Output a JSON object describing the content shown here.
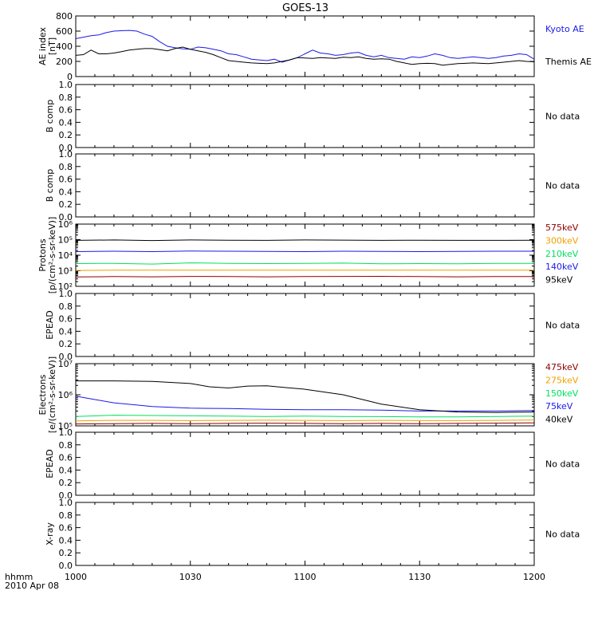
{
  "title": "GOES-13",
  "footer": {
    "time_label": "hhmm",
    "date_label": "2010 Apr 08"
  },
  "colors": {
    "black": "#000000",
    "blue": "#1a1ae6",
    "green": "#00e060",
    "orange": "#f0a000",
    "darkred": "#8b0000"
  },
  "chart_data": [
    {
      "type": "line",
      "ylabel": "AE index",
      "ylabel_unit": "[nT]",
      "ylim": [
        0,
        800
      ],
      "yticks": [
        0,
        200,
        400,
        600,
        800
      ],
      "series": [
        {
          "name": "Kyoto AE",
          "color": "#1a1ae6",
          "x": [
            0,
            2,
            4,
            6,
            8,
            10,
            12,
            14,
            16,
            18,
            20,
            22,
            24,
            26,
            28,
            30,
            32,
            34,
            36,
            38,
            40,
            42,
            44,
            46,
            48,
            50,
            52,
            54,
            56,
            58,
            60,
            62,
            64,
            66,
            68,
            70,
            72,
            74,
            76,
            78,
            80,
            82,
            84,
            86,
            88,
            90,
            92,
            94,
            96,
            98,
            100,
            102,
            104,
            106,
            108,
            110,
            112,
            114,
            116,
            118,
            120
          ],
          "values": [
            500,
            520,
            540,
            550,
            580,
            600,
            605,
            610,
            600,
            560,
            530,
            460,
            400,
            380,
            365,
            360,
            390,
            380,
            360,
            340,
            300,
            290,
            260,
            230,
            220,
            210,
            230,
            190,
            220,
            250,
            300,
            350,
            310,
            300,
            280,
            290,
            310,
            320,
            280,
            260,
            280,
            250,
            240,
            230,
            260,
            250,
            270,
            300,
            280,
            250,
            240,
            250,
            260,
            250,
            240,
            250,
            270,
            280,
            300,
            290,
            230
          ]
        },
        {
          "name": "Themis AE",
          "color": "#000000",
          "x": [
            0,
            2,
            4,
            6,
            8,
            10,
            12,
            14,
            16,
            18,
            20,
            22,
            24,
            26,
            28,
            30,
            32,
            34,
            36,
            38,
            40,
            42,
            44,
            46,
            48,
            50,
            52,
            54,
            56,
            58,
            60,
            62,
            64,
            66,
            68,
            70,
            72,
            74,
            76,
            78,
            80,
            82,
            84,
            86,
            88,
            90,
            92,
            94,
            96,
            98,
            100,
            102,
            104,
            106,
            108,
            110,
            112,
            114,
            116,
            118,
            120
          ],
          "values": [
            280,
            290,
            350,
            300,
            300,
            310,
            330,
            350,
            360,
            370,
            370,
            355,
            340,
            370,
            390,
            360,
            340,
            320,
            290,
            250,
            210,
            200,
            190,
            180,
            175,
            170,
            180,
            200,
            220,
            250,
            245,
            240,
            250,
            245,
            240,
            255,
            250,
            260,
            240,
            230,
            235,
            230,
            200,
            180,
            160,
            170,
            175,
            170,
            150,
            160,
            170,
            175,
            180,
            175,
            170,
            180,
            190,
            200,
            210,
            200,
            195
          ]
        }
      ]
    },
    {
      "type": "line",
      "ylabel": "B comp",
      "ylim": [
        0,
        1
      ],
      "yticks": [
        0.0,
        0.2,
        0.4,
        0.6,
        0.8,
        1.0
      ],
      "no_data": "No data",
      "series": []
    },
    {
      "type": "line",
      "ylabel": "B comp",
      "ylim": [
        0,
        1
      ],
      "yticks": [
        0.0,
        0.2,
        0.4,
        0.6,
        0.8,
        1.0
      ],
      "no_data": "No data",
      "series": []
    },
    {
      "type": "line",
      "ylabel": "Protons",
      "ylabel_unit": "[p/(cm²-s-sr-keV)]",
      "log": true,
      "ylim": [
        100,
        1000000
      ],
      "yticks": [
        100,
        1000,
        10000,
        100000,
        1000000
      ],
      "series": [
        {
          "name": "575keV",
          "color": "#8b0000",
          "x": [
            0,
            10,
            20,
            30,
            40,
            50,
            60,
            70,
            80,
            90,
            100,
            110,
            120
          ],
          "values": [
            400,
            420,
            410,
            430,
            420,
            410,
            420,
            430,
            440,
            420,
            410,
            420,
            420
          ]
        },
        {
          "name": "300keV",
          "color": "#f0a000",
          "x": [
            0,
            10,
            20,
            30,
            40,
            50,
            60,
            70,
            80,
            90,
            100,
            110,
            120
          ],
          "values": [
            1050,
            1100,
            1080,
            1100,
            1090,
            1080,
            1100,
            1100,
            1080,
            1090,
            1100,
            1100,
            1100
          ]
        },
        {
          "name": "210keV",
          "color": "#00e060",
          "x": [
            0,
            10,
            20,
            30,
            40,
            50,
            60,
            70,
            80,
            90,
            100,
            110,
            120
          ],
          "values": [
            2900,
            3000,
            2700,
            3200,
            3000,
            2900,
            3000,
            3100,
            2800,
            2900,
            2800,
            3000,
            3000
          ]
        },
        {
          "name": "140keV",
          "color": "#1a1ae6",
          "x": [
            0,
            10,
            20,
            30,
            40,
            50,
            60,
            70,
            80,
            90,
            100,
            110,
            120
          ],
          "values": [
            17000,
            18000,
            17000,
            18500,
            18000,
            17500,
            17000,
            18000,
            17500,
            17000,
            17500,
            18000,
            18000
          ]
        },
        {
          "name": "95keV",
          "color": "#000000",
          "x": [
            0,
            10,
            20,
            30,
            40,
            50,
            60,
            70,
            80,
            90,
            100,
            110,
            120
          ],
          "values": [
            90000,
            95000,
            88000,
            95000,
            92000,
            90000,
            95000,
            93000,
            90000,
            92000,
            90000,
            90000,
            92000
          ]
        }
      ]
    },
    {
      "type": "line",
      "ylabel": "EPEAD",
      "ylim": [
        0,
        1
      ],
      "yticks": [
        0.0,
        0.2,
        0.4,
        0.6,
        0.8,
        1.0
      ],
      "no_data": "No data",
      "series": []
    },
    {
      "type": "line",
      "ylabel": "Electrons",
      "ylabel_unit": "[e/(cm²-s-sr-keV)]",
      "log": true,
      "ylim": [
        100000,
        10000000
      ],
      "yticks": [
        100000,
        1000000,
        10000000
      ],
      "series": [
        {
          "name": "475keV",
          "color": "#8b0000",
          "x": [
            0,
            10,
            20,
            30,
            40,
            50,
            60,
            70,
            80,
            90,
            100,
            110,
            120
          ],
          "values": [
            115000,
            118000,
            120000,
            118000,
            120000,
            122000,
            120000,
            118000,
            120000,
            118000,
            120000,
            122000,
            125000
          ]
        },
        {
          "name": "275keV",
          "color": "#f0a000",
          "x": [
            0,
            10,
            20,
            30,
            40,
            50,
            60,
            70,
            80,
            90,
            100,
            110,
            120
          ],
          "values": [
            145000,
            150000,
            150000,
            148000,
            150000,
            152000,
            150000,
            148000,
            150000,
            148000,
            148000,
            150000,
            155000
          ]
        },
        {
          "name": "150keV",
          "color": "#00e060",
          "x": [
            0,
            10,
            20,
            30,
            40,
            50,
            60,
            70,
            80,
            90,
            100,
            110,
            120
          ],
          "values": [
            200000,
            220000,
            215000,
            210000,
            205000,
            200000,
            205000,
            200000,
            198000,
            195000,
            195000,
            200000,
            205000
          ]
        },
        {
          "name": "75keV",
          "color": "#1a1ae6",
          "x": [
            0,
            5,
            10,
            20,
            30,
            40,
            50,
            60,
            70,
            80,
            90,
            100,
            110,
            120
          ],
          "values": [
            900000,
            700000,
            550000,
            420000,
            370000,
            360000,
            340000,
            330000,
            330000,
            320000,
            300000,
            300000,
            300000,
            310000
          ]
        },
        {
          "name": "40keV",
          "color": "#000000",
          "x": [
            0,
            10,
            20,
            30,
            35,
            40,
            45,
            50,
            55,
            60,
            70,
            80,
            90,
            100,
            110,
            120
          ],
          "values": [
            2800000,
            2800000,
            2700000,
            2300000,
            1800000,
            1650000,
            1900000,
            1950000,
            1700000,
            1500000,
            1000000,
            500000,
            330000,
            280000,
            270000,
            280000
          ]
        }
      ]
    },
    {
      "type": "line",
      "ylabel": "EPEAD",
      "ylim": [
        0,
        1
      ],
      "yticks": [
        0.0,
        0.2,
        0.4,
        0.6,
        0.8,
        1.0
      ],
      "no_data": "No data",
      "series": []
    },
    {
      "type": "line",
      "ylabel": "X-ray",
      "ylim": [
        0,
        1
      ],
      "yticks": [
        0.0,
        0.2,
        0.4,
        0.6,
        0.8,
        1.0
      ],
      "no_data": "No data",
      "series": []
    }
  ],
  "xaxis": {
    "ticks": [
      0,
      30,
      60,
      90,
      120
    ],
    "tick_labels": [
      "1000",
      "1030",
      "1100",
      "1130",
      "1200"
    ],
    "xlim": [
      0,
      120
    ]
  }
}
